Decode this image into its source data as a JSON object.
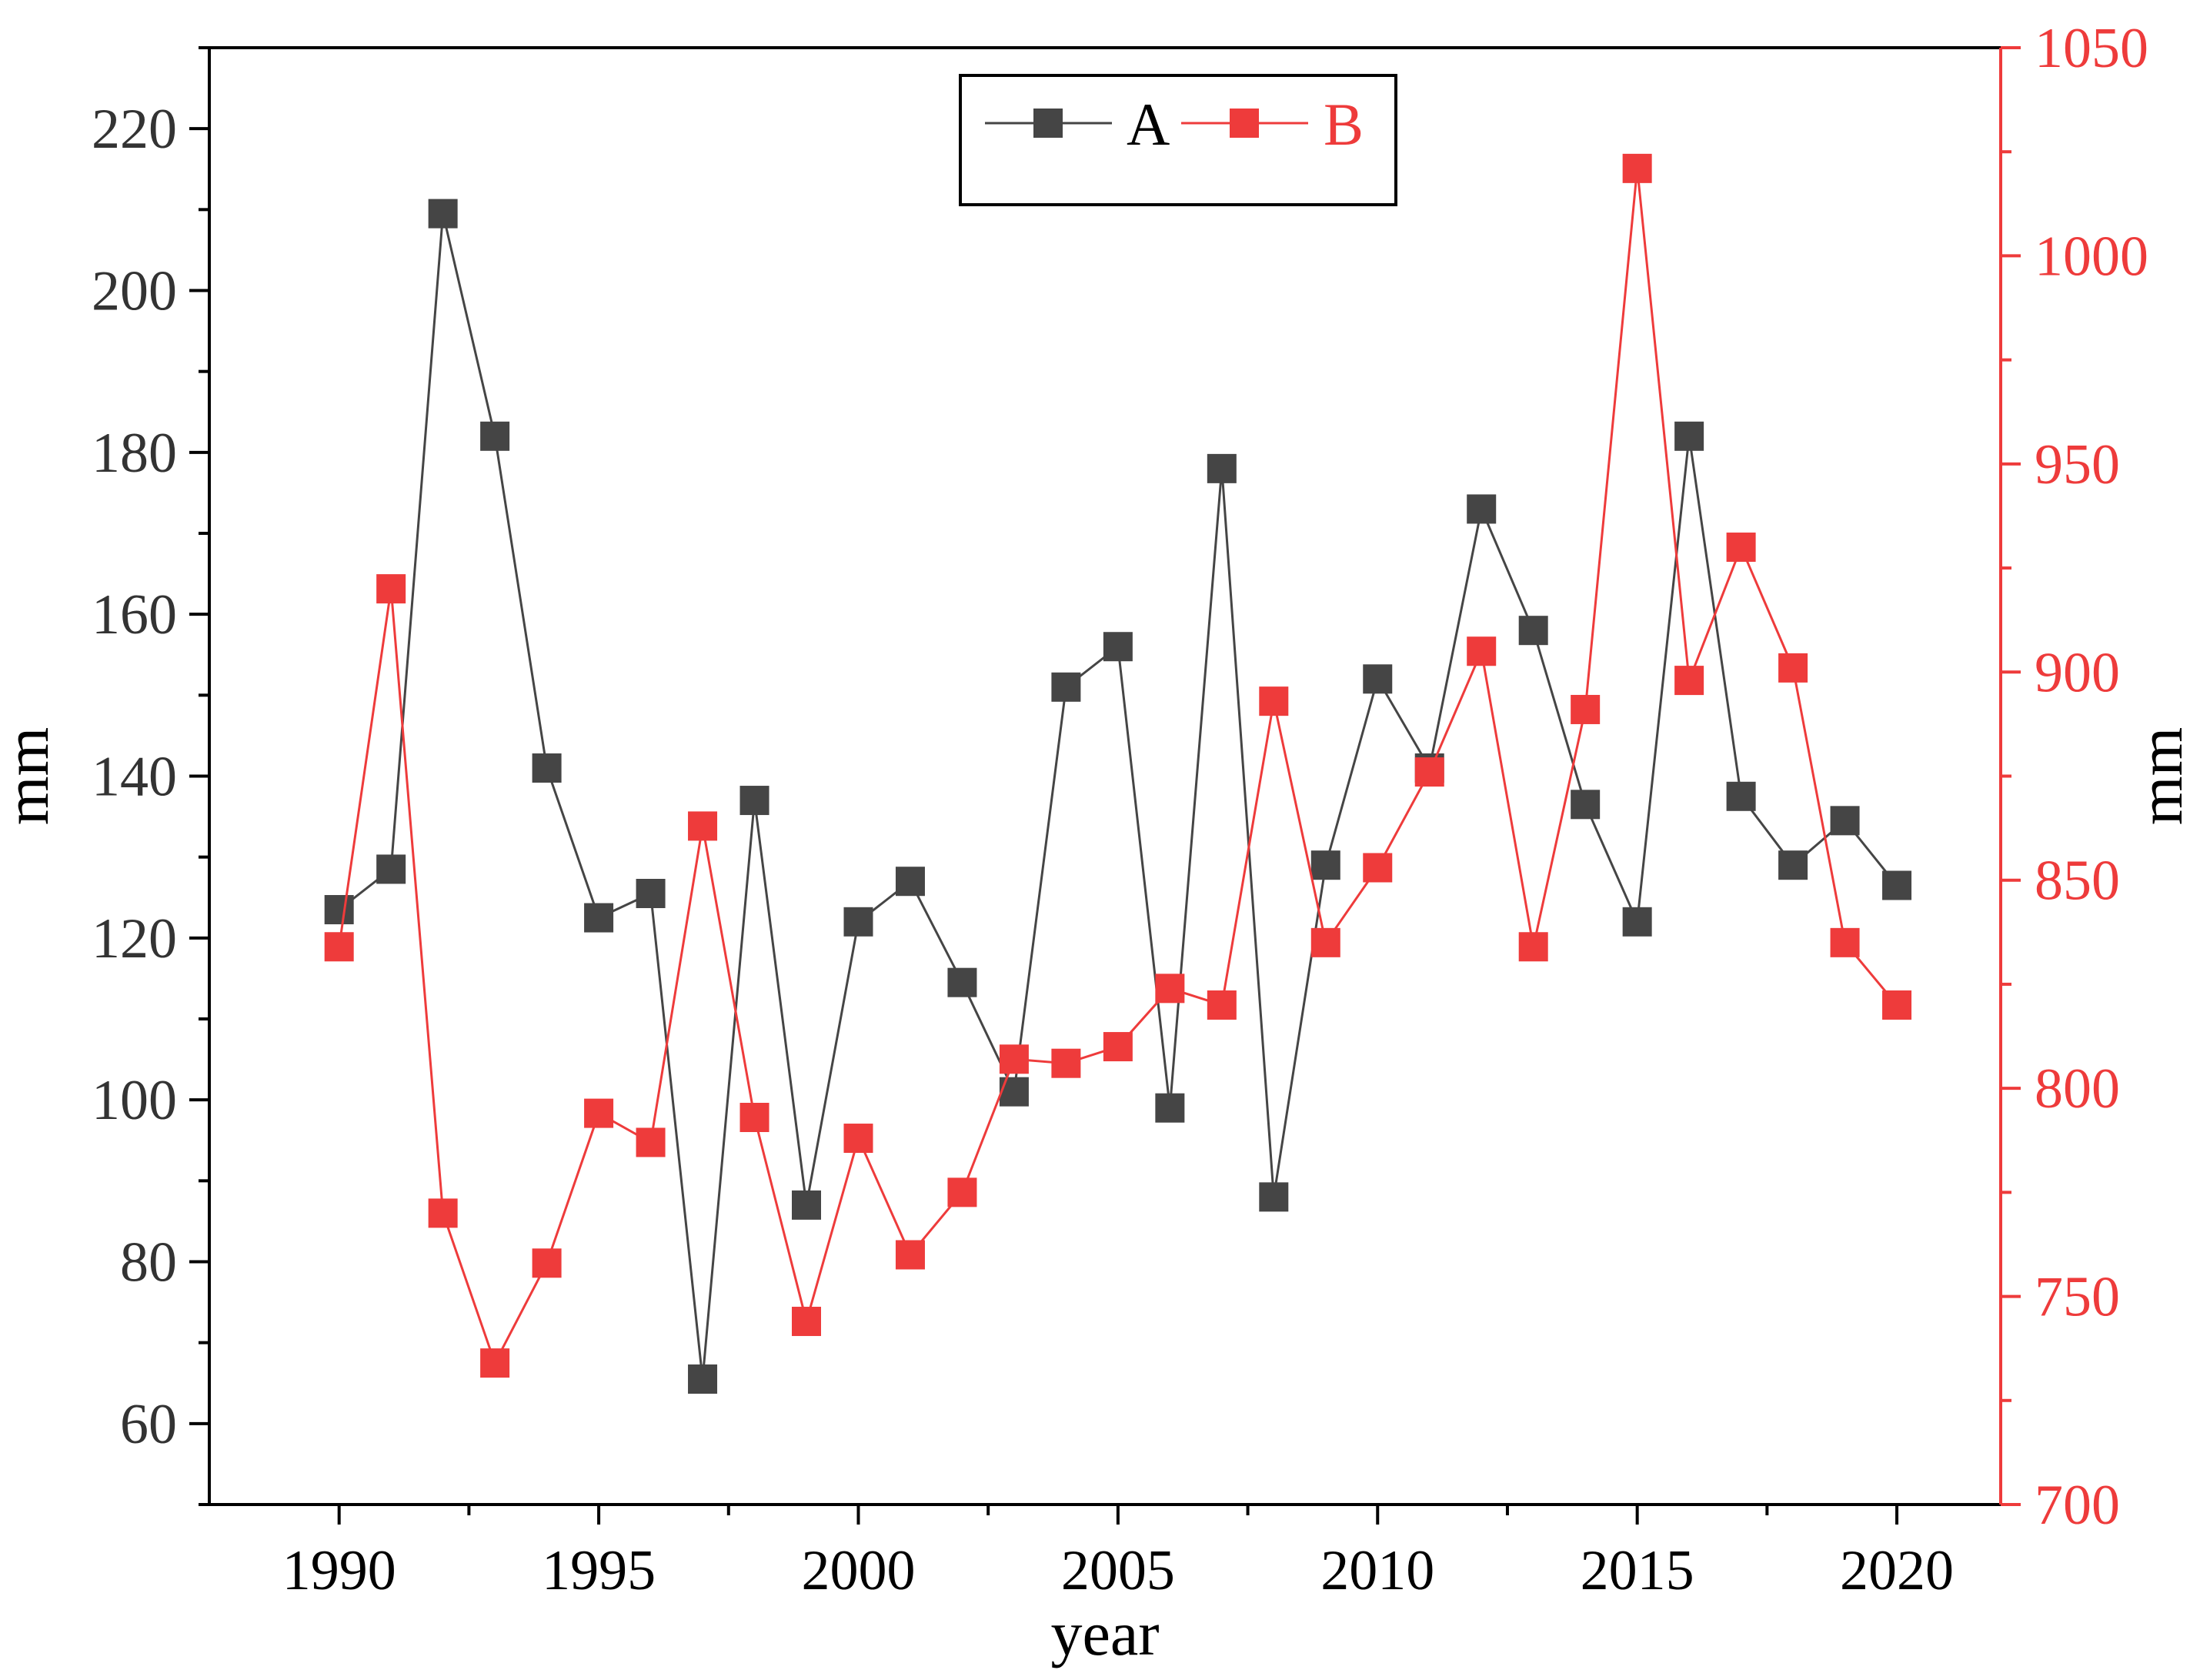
{
  "chart_data": {
    "type": "line",
    "title": "",
    "xlabel": "year",
    "ylabel": "mm",
    "y2label": "mm",
    "xlim": [
      1987.5,
      2022
    ],
    "ylim": [
      50,
      230
    ],
    "y2lim": [
      700,
      1050
    ],
    "x_ticks": [
      1990,
      1995,
      2000,
      2005,
      2010,
      2015,
      2020
    ],
    "y_ticks": [
      60,
      80,
      100,
      120,
      140,
      160,
      180,
      200,
      220
    ],
    "y2_ticks": [
      700,
      750,
      800,
      850,
      900,
      950,
      1000,
      1050
    ],
    "x": [
      1990,
      1991,
      1992,
      1993,
      1994,
      1995,
      1996,
      1997,
      1998,
      1999,
      2000,
      2001,
      2002,
      2003,
      2004,
      2005,
      2006,
      2007,
      2008,
      2009,
      2010,
      2011,
      2012,
      2013,
      2014,
      2015,
      2016,
      2017,
      2018,
      2019,
      2020
    ],
    "series": [
      {
        "name": "A",
        "axis": "left",
        "color": "#454545",
        "values": [
          123.5,
          128.5,
          209.5,
          182,
          141,
          122.5,
          125.5,
          65.5,
          137,
          87,
          122,
          127,
          114.5,
          101,
          151,
          156,
          99,
          178,
          88,
          129,
          152,
          141,
          173,
          158,
          136.5,
          122,
          182,
          137.5,
          129,
          134.5,
          126.5
        ]
      },
      {
        "name": "B",
        "axis": "right",
        "color": "#ee3b3b",
        "values": [
          834,
          920,
          770,
          734,
          758,
          794,
          787,
          863,
          793,
          744,
          788,
          760,
          775,
          807,
          806,
          810,
          824,
          820,
          893,
          835,
          853,
          876,
          905,
          834,
          891,
          1021,
          898,
          930,
          901,
          835,
          820
        ]
      }
    ],
    "legend": {
      "position": "top-center",
      "entries": [
        "A",
        "B"
      ]
    }
  }
}
